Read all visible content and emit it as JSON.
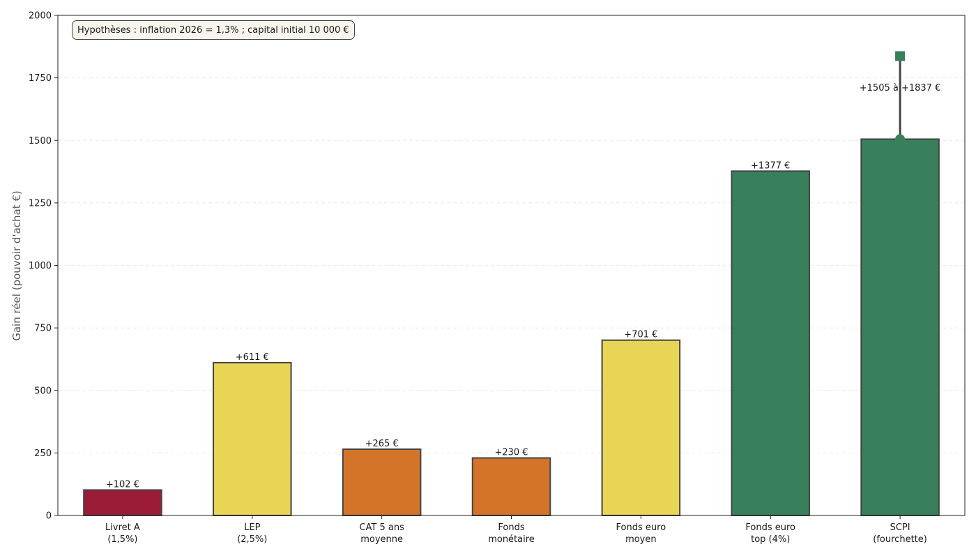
{
  "chart_data": {
    "type": "bar",
    "title": "",
    "xlabel": "",
    "ylabel": "Gain réel (pouvoir d'achat €)",
    "ylim": [
      0,
      2000
    ],
    "yticks": [
      0,
      250,
      500,
      750,
      1000,
      1250,
      1500,
      1750,
      2000
    ],
    "grid": true,
    "note": "Hypothèses : inflation 2026 = 1,3% ; capital initial 10 000 €",
    "categories": [
      [
        "Livret A",
        "(1,5%)"
      ],
      [
        "LEP",
        "(2,5%)"
      ],
      [
        "CAT 5 ans",
        "moyenne"
      ],
      [
        "Fonds",
        "monétaire"
      ],
      [
        "Fonds euro",
        "moyen"
      ],
      [
        "Fonds euro",
        "top (4%)"
      ],
      [
        "SCPI",
        "(fourchette)"
      ]
    ],
    "values": [
      102,
      611,
      265,
      230,
      701,
      1377,
      1505
    ],
    "bar_colors": [
      "#9b1c36",
      "#e8d556",
      "#d4742a",
      "#d4742a",
      "#e8d556",
      "#38805c",
      "#38805c"
    ],
    "value_labels": [
      "+102 €",
      "+611 €",
      "+265 €",
      "+230 €",
      "+701 €",
      "+1377 €",
      "+1505 à +1837 €"
    ],
    "range": {
      "category_index": 6,
      "low": 1505,
      "high": 1837
    }
  }
}
